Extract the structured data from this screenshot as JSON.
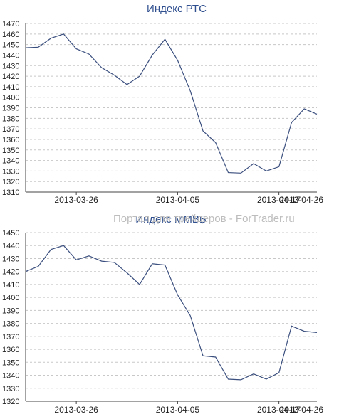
{
  "watermark": "Портал для трейдеров - ForTrader.ru",
  "colors": {
    "line": "#3b4f7e",
    "title": "#2f4f8f",
    "grid": "#c8c8c8"
  },
  "chart_data": [
    {
      "type": "line",
      "title": "Индекс РТС",
      "ylim": [
        1310,
        1470
      ],
      "yticks": [
        1310,
        1320,
        1330,
        1340,
        1350,
        1360,
        1370,
        1380,
        1390,
        1400,
        1410,
        1420,
        1430,
        1440,
        1450,
        1460,
        1470
      ],
      "xtick_labels": [
        "2013-03-26",
        "2013-04-05",
        "2013-04-17",
        "2013-04-26"
      ],
      "xtick_index": [
        4,
        12,
        20,
        28
      ],
      "grid": "horizontal",
      "series": [
        {
          "values": [
            1447,
            1447.5,
            1456,
            1460,
            1446,
            1441,
            1428,
            1421,
            1412,
            1420,
            1440,
            1455,
            1435,
            1406,
            1368,
            1357,
            1328.5,
            1328,
            1337,
            1330,
            1334,
            1376,
            1389,
            1384
          ]
        }
      ]
    },
    {
      "type": "line",
      "title": "Индекс ММВБ",
      "ylim": [
        1320,
        1450
      ],
      "yticks": [
        1320,
        1330,
        1340,
        1350,
        1360,
        1370,
        1380,
        1390,
        1400,
        1410,
        1420,
        1430,
        1440,
        1450
      ],
      "xtick_labels": [
        "2013-03-26",
        "2013-04-05",
        "2013-04-17",
        "2013-04-26"
      ],
      "xtick_index": [
        4,
        12,
        20,
        28
      ],
      "grid": "horizontal",
      "series": [
        {
          "values": [
            1420,
            1424,
            1437,
            1440,
            1429,
            1432,
            1428,
            1427,
            1419,
            1410,
            1426,
            1425,
            1402,
            1386,
            1355,
            1354,
            1337,
            1336.5,
            1341,
            1337,
            1342,
            1378,
            1374,
            1373
          ]
        }
      ]
    }
  ]
}
